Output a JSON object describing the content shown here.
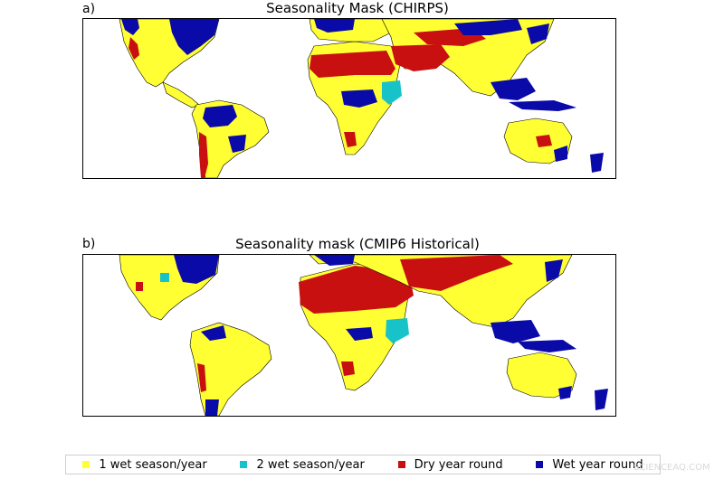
{
  "panels": [
    {
      "label": "a)",
      "title": "Seasonality Mask (CHIRPS)"
    },
    {
      "label": "b)",
      "title": "Seasonality mask (CMIP6 Historical)"
    }
  ],
  "legend": [
    {
      "label": "1 wet season/year",
      "color": "#ffff33"
    },
    {
      "label": "2 wet season/year",
      "color": "#17c3c8"
    },
    {
      "label": "Dry year round",
      "color": "#c81010"
    },
    {
      "label": "Wet year round",
      "color": "#0a0aa8"
    }
  ],
  "watermark": "SCIENCEAQ.COM"
}
